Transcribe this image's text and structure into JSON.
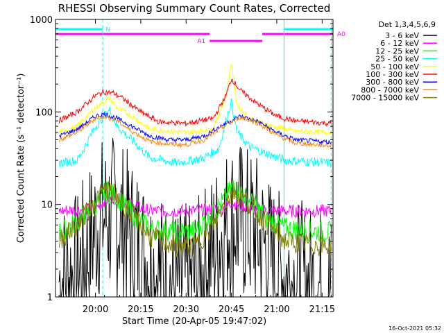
{
  "chart_data": {
    "type": "line",
    "title": "RHESSI Observing Summary Count Rates, Corrected",
    "xlabel": "Start Time (20-Apr-05 19:47:02)",
    "ylabel": "Corrected Count Rate (s⁻¹ detector⁻¹)",
    "y_scale": "log",
    "ylim": [
      1,
      1000
    ],
    "x_unit": "minutes",
    "xlim": [
      19.78,
      21.31
    ],
    "x_ticks": [
      {
        "t": 20.0,
        "label": "20:00"
      },
      {
        "t": 20.25,
        "label": "20:15"
      },
      {
        "t": 20.5,
        "label": "20:30"
      },
      {
        "t": 20.75,
        "label": "20:45"
      },
      {
        "t": 21.0,
        "label": "21:00"
      },
      {
        "t": 21.25,
        "label": "21:15"
      }
    ],
    "y_ticks": [
      {
        "v": 1,
        "label": "1"
      },
      {
        "v": 10,
        "label": "10"
      },
      {
        "v": 100,
        "label": "100"
      },
      {
        "v": 1000,
        "label": "1000"
      }
    ],
    "legend_title": "Det 1,3,4,5,6,9",
    "legend_position": "right",
    "series": [
      {
        "name": "3 - 6 keV",
        "color": "#000000",
        "x": [
          19.8,
          19.9,
          19.95,
          20.02,
          20.1,
          20.15,
          20.22,
          20.32,
          20.45,
          20.55,
          20.62,
          20.7,
          20.75,
          20.8,
          20.88,
          20.95,
          21.0,
          21.1,
          21.2,
          21.3
        ],
        "y": [
          1.5,
          1.8,
          3.0,
          7.0,
          7.5,
          6.0,
          4.0,
          2.0,
          1.3,
          1.4,
          2.5,
          5.0,
          7.0,
          6.5,
          5.0,
          3.0,
          2.0,
          1.5,
          1.3,
          1.2
        ]
      },
      {
        "name": "6 - 12 keV",
        "color": "#ff00ff",
        "x": [
          19.8,
          20.0,
          20.05,
          20.1,
          20.2,
          20.3,
          20.5,
          20.6,
          20.7,
          20.75,
          20.85,
          21.0,
          21.3
        ],
        "y": [
          8.5,
          9.0,
          11.0,
          12.0,
          10.0,
          8.5,
          8.5,
          8.7,
          9.0,
          10.5,
          9.0,
          8.5,
          8.5
        ]
      },
      {
        "name": "12 - 25 keV",
        "color": "#00ff00",
        "x": [
          19.8,
          19.9,
          20.0,
          20.06,
          20.12,
          20.2,
          20.3,
          20.45,
          20.55,
          20.65,
          20.72,
          20.76,
          20.85,
          20.95,
          21.05,
          21.3
        ],
        "y": [
          5.0,
          6.5,
          10.0,
          14.0,
          12.0,
          8.0,
          5.5,
          5.0,
          5.2,
          8.0,
          12.0,
          16.0,
          11.0,
          7.0,
          5.5,
          5.0
        ]
      },
      {
        "name": "25 - 50 keV",
        "color": "#00ffff",
        "x": [
          19.8,
          19.9,
          19.95,
          20.0,
          20.05,
          20.08,
          20.12,
          20.2,
          20.3,
          20.45,
          20.6,
          20.68,
          20.72,
          20.75,
          20.78,
          20.85,
          20.95,
          21.05,
          21.3
        ],
        "y": [
          28.0,
          30.0,
          45.0,
          70.0,
          90.0,
          105.0,
          70.0,
          50.0,
          32.0,
          28.0,
          32.0,
          40.0,
          80.0,
          130.0,
          60.0,
          42.0,
          35.0,
          30.0,
          28.0
        ]
      },
      {
        "name": "50 - 100 keV",
        "color": "#ffff00",
        "x": [
          19.8,
          19.9,
          20.0,
          20.05,
          20.08,
          20.12,
          20.2,
          20.3,
          20.5,
          20.65,
          20.72,
          20.75,
          20.78,
          20.85,
          20.95,
          21.1,
          21.3
        ],
        "y": [
          60.0,
          70.0,
          110.0,
          130.0,
          140.0,
          110.0,
          90.0,
          65.0,
          60.0,
          65.0,
          150.0,
          350.0,
          120.0,
          85.0,
          72.0,
          62.0,
          60.0
        ]
      },
      {
        "name": "100 - 300 keV",
        "color": "#ff0000",
        "x": [
          19.8,
          19.9,
          20.0,
          20.05,
          20.1,
          20.15,
          20.25,
          20.35,
          20.5,
          20.65,
          20.72,
          20.75,
          20.8,
          20.9,
          21.0,
          21.1,
          21.3
        ],
        "y": [
          80.0,
          100.0,
          150.0,
          165.0,
          160.0,
          140.0,
          100.0,
          78.0,
          75.0,
          85.0,
          150.0,
          230.0,
          170.0,
          120.0,
          90.0,
          80.0,
          75.0
        ]
      },
      {
        "name": "300 - 800 keV",
        "color": "#0000ff",
        "x": [
          19.8,
          19.9,
          20.0,
          20.05,
          20.12,
          20.2,
          20.3,
          20.4,
          20.5,
          20.6,
          20.7,
          20.8,
          20.9,
          21.0,
          21.1,
          21.3
        ],
        "y": [
          55.0,
          65.0,
          90.0,
          95.0,
          85.0,
          70.0,
          55.0,
          50.0,
          50.0,
          55.0,
          72.0,
          90.0,
          78.0,
          60.0,
          50.0,
          47.0
        ]
      },
      {
        "name": "800 - 7000 keV",
        "color": "#ff8000",
        "x": [
          19.8,
          19.9,
          20.0,
          20.05,
          20.12,
          20.2,
          20.3,
          20.4,
          20.5,
          20.6,
          20.7,
          20.8,
          20.9,
          21.0,
          21.1,
          21.3
        ],
        "y": [
          50.0,
          60.0,
          85.0,
          90.0,
          80.0,
          62.0,
          48.0,
          45.0,
          44.0,
          50.0,
          68.0,
          88.0,
          75.0,
          56.0,
          46.0,
          43.0
        ]
      },
      {
        "name": "7000 - 15000 keV",
        "color": "#808000",
        "x": [
          19.8,
          19.9,
          20.0,
          20.06,
          20.12,
          20.2,
          20.3,
          20.45,
          20.55,
          20.65,
          20.72,
          20.77,
          20.85,
          20.95,
          21.05,
          21.3
        ],
        "y": [
          4.0,
          6.0,
          11.0,
          15.0,
          12.0,
          8.0,
          4.5,
          3.5,
          3.5,
          6.0,
          11.0,
          14.0,
          10.0,
          6.0,
          4.0,
          3.5
        ]
      }
    ],
    "flag_bars": [
      {
        "label": "N",
        "color": "#00ffff",
        "segments": [
          [
            19.78,
            20.04
          ],
          [
            21.04,
            21.31
          ]
        ]
      },
      {
        "label": "A0",
        "color": "#ff00ff",
        "segments": [
          [
            19.78,
            20.63
          ],
          [
            20.92,
            21.31
          ]
        ]
      },
      {
        "label": "A1",
        "color": "#ff00ff",
        "segments": [
          [
            20.63,
            20.92
          ]
        ]
      }
    ],
    "vertical_markers": [
      20.04,
      21.04,
      21.3
    ],
    "marker_color": "#00ffff"
  },
  "footer": {
    "timestamp": "16-Oct-2021 05:32"
  }
}
